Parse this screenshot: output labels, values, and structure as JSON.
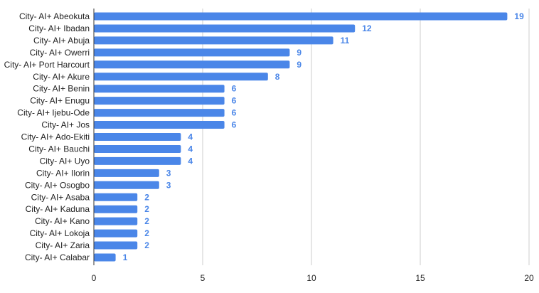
{
  "chart_data": {
    "type": "bar",
    "orientation": "horizontal",
    "categories": [
      "City- AI+ Abeokuta",
      "City- AI+ Ibadan",
      "City- AI+ Abuja",
      "City- AI+ Owerri",
      "City- AI+ Port Harcourt",
      "City- AI+ Akure",
      "City- AI+ Benin",
      "City- AI+ Enugu",
      "City- AI+ Ijebu-Ode",
      "City- AI+ Jos",
      "City- AI+ Ado-Ekiti",
      "City- AI+ Bauchi",
      "City- AI+ Uyo",
      "City- AI+ Ilorin",
      "City- AI+ Osogbo",
      "City- AI+ Asaba",
      "City- AI+ Kaduna",
      "City- AI+ Kano",
      "City- AI+ Lokoja",
      "City- AI+ Zaria",
      "City- AI+ Calabar"
    ],
    "values": [
      19,
      12,
      11,
      9,
      9,
      8,
      6,
      6,
      6,
      6,
      4,
      4,
      4,
      3,
      3,
      2,
      2,
      2,
      2,
      2,
      1
    ],
    "xlim": [
      0,
      20
    ],
    "xticks": [
      "0",
      "5",
      "10",
      "15",
      "20"
    ],
    "grid": true,
    "legend": "none",
    "bar_color": "#4a86e8",
    "label_color": "#4a86e8"
  }
}
